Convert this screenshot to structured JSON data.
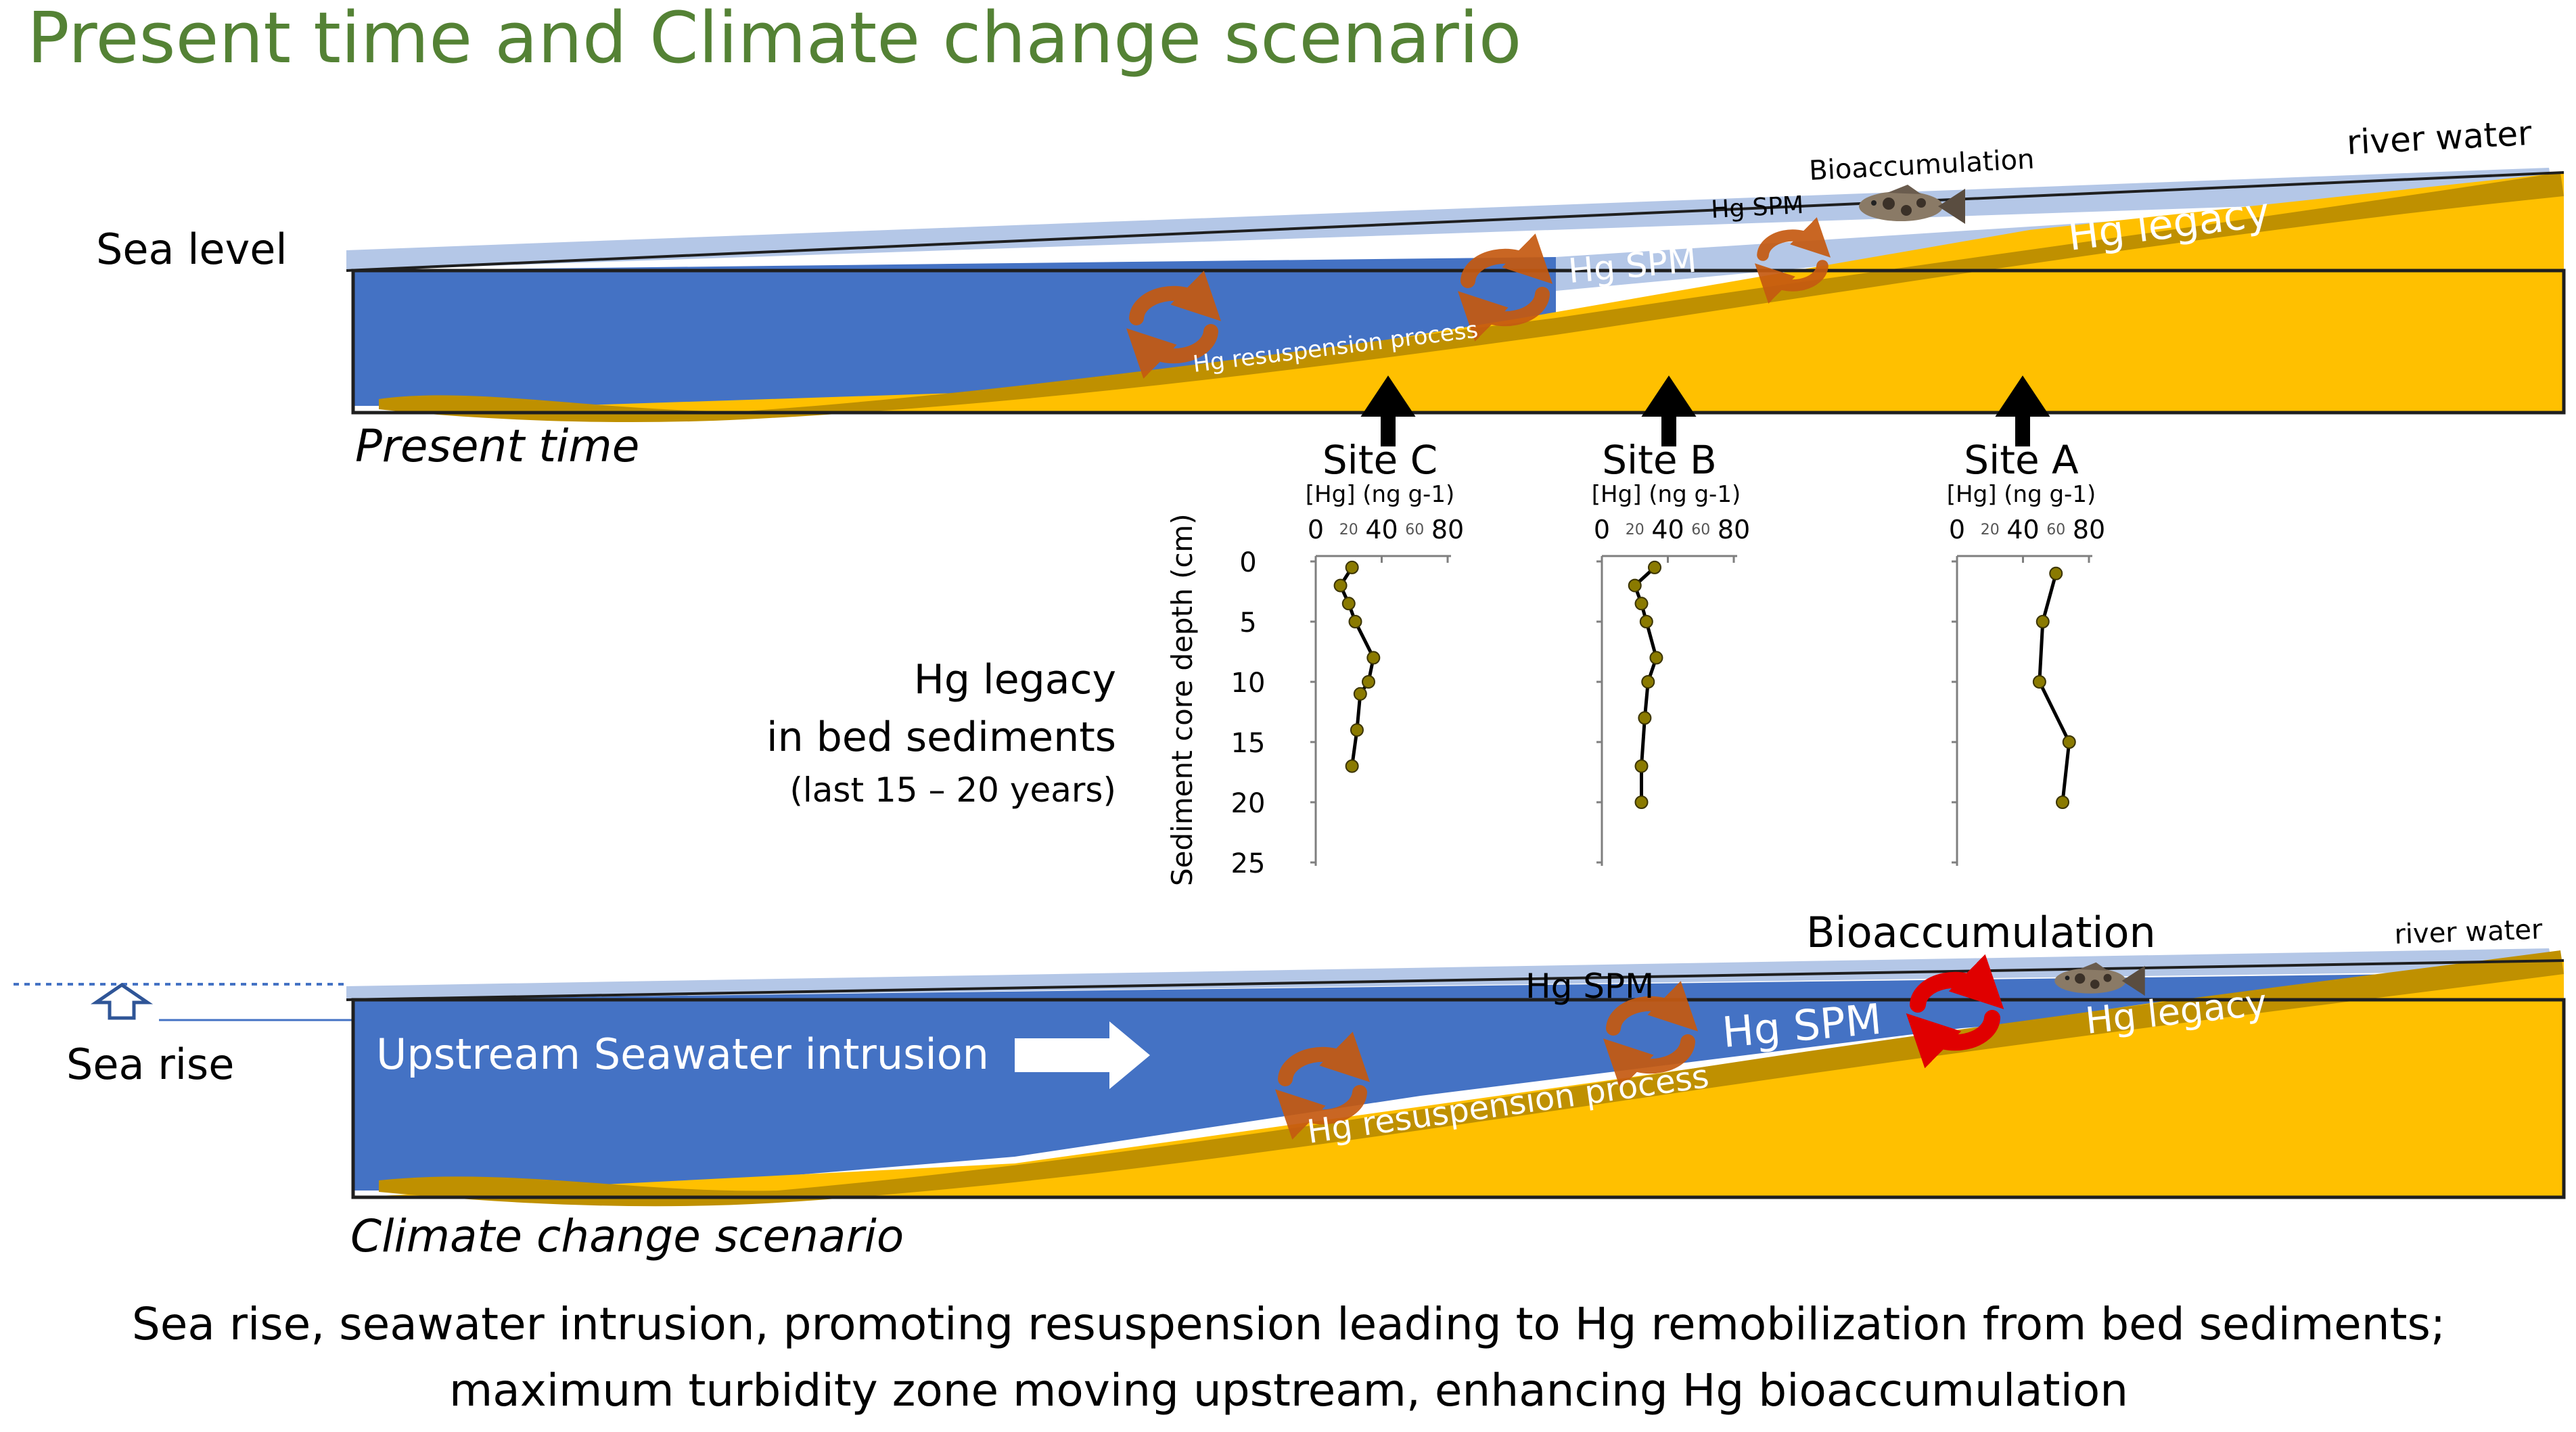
{
  "title": "Present time and Climate change scenario",
  "colors": {
    "title": "#548235",
    "surface_water": "#b4c7e7",
    "sea_water": "#4472c4",
    "sediment_legacy": "#ffc000",
    "sediment_dark": "#bf9000",
    "swirl": "#c55a11",
    "swirl_hot": "#e00000",
    "arrow": "#000000"
  },
  "present": {
    "scenario_label": "Present time",
    "sea_level": "Sea level",
    "river_water": "river water",
    "bioaccumulation": "Bioaccumulation",
    "hg_spm_small": "Hg SPM",
    "hg_spm": "Hg SPM",
    "hg_legacy": "Hg legacy",
    "resuspension": "Hg resuspension process"
  },
  "climate": {
    "scenario_label": "Climate change scenario",
    "sea_rise": "Sea rise",
    "river_water": "river water",
    "bioaccumulation": "Bioaccumulation",
    "hg_spm_small": "Hg SPM",
    "hg_spm": "Hg SPM",
    "hg_legacy": "Hg legacy",
    "resuspension": "Hg resuspension process",
    "intrusion": "Upstream Seawater intrusion"
  },
  "cores": {
    "side_label_line1": "Hg legacy",
    "side_label_line2": "in bed sediments",
    "side_label_line3": "(last 15 – 20 years)",
    "ylabel": "Sediment core depth (cm)",
    "xlabel": "[Hg] (ng g-1)",
    "y_ticks": [
      "0",
      "5",
      "10",
      "15",
      "20",
      "25"
    ],
    "x_ticks": [
      "0",
      "40",
      "80"
    ],
    "x_minor_ticks": [
      "20",
      "60"
    ]
  },
  "chart_data": {
    "type": "line",
    "title": "",
    "ylabel": "Sediment core depth (cm)",
    "xlabel": "[Hg] (ng g-1)",
    "xlim": [
      0,
      80
    ],
    "ylim": [
      25,
      0
    ],
    "series": [
      {
        "name": "Site C",
        "points": [
          [
            22,
            0.5
          ],
          [
            15,
            2
          ],
          [
            20,
            3.5
          ],
          [
            24,
            5
          ],
          [
            35,
            8
          ],
          [
            32,
            10
          ],
          [
            27,
            11
          ],
          [
            25,
            14
          ],
          [
            22,
            17
          ]
        ]
      },
      {
        "name": "Site B",
        "points": [
          [
            32,
            0.5
          ],
          [
            20,
            2
          ],
          [
            24,
            3.5
          ],
          [
            27,
            5
          ],
          [
            33,
            8
          ],
          [
            28,
            10
          ],
          [
            26,
            13
          ],
          [
            24,
            17
          ],
          [
            24,
            20
          ]
        ]
      },
      {
        "name": "Site A",
        "points": [
          [
            60,
            1
          ],
          [
            52,
            5
          ],
          [
            50,
            10
          ],
          [
            68,
            15
          ],
          [
            64,
            20
          ]
        ]
      }
    ]
  },
  "caption": {
    "line1": "Sea rise, seawater intrusion, promoting resuspension leading to Hg remobilization from bed sediments;",
    "line2": "maximum turbidity zone moving upstream, enhancing Hg bioaccumulation"
  }
}
